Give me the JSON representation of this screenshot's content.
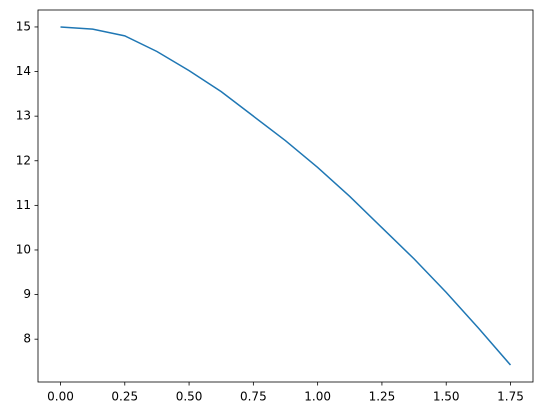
{
  "chart_data": {
    "type": "line",
    "x": [
      0,
      0.125,
      0.25,
      0.375,
      0.5,
      0.625,
      0.75,
      0.875,
      1.0,
      1.125,
      1.25,
      1.375,
      1.5,
      1.625,
      1.75
    ],
    "series": [
      {
        "color": "#1f77b4",
        "values": [
          15,
          14.95,
          14.8,
          14.45,
          14.02,
          13.55,
          13.0,
          12.45,
          11.85,
          11.2,
          10.5,
          9.8,
          9.05,
          8.25,
          7.42
        ]
      }
    ],
    "xlim": [
      -0.0875,
      1.8375
    ],
    "ylim": [
      7.04,
      15.38
    ],
    "xticks": [
      {
        "value": 0,
        "label": "0.00"
      },
      {
        "value": 0.25,
        "label": "0.25"
      },
      {
        "value": 0.5,
        "label": "0.50"
      },
      {
        "value": 0.75,
        "label": "0.75"
      },
      {
        "value": 1.0,
        "label": "1.00"
      },
      {
        "value": 1.25,
        "label": "1.25"
      },
      {
        "value": 1.5,
        "label": "1.50"
      },
      {
        "value": 1.75,
        "label": "1.75"
      }
    ],
    "yticks": [
      8,
      9,
      10,
      11,
      12,
      13,
      14,
      15
    ],
    "grid": false
  }
}
